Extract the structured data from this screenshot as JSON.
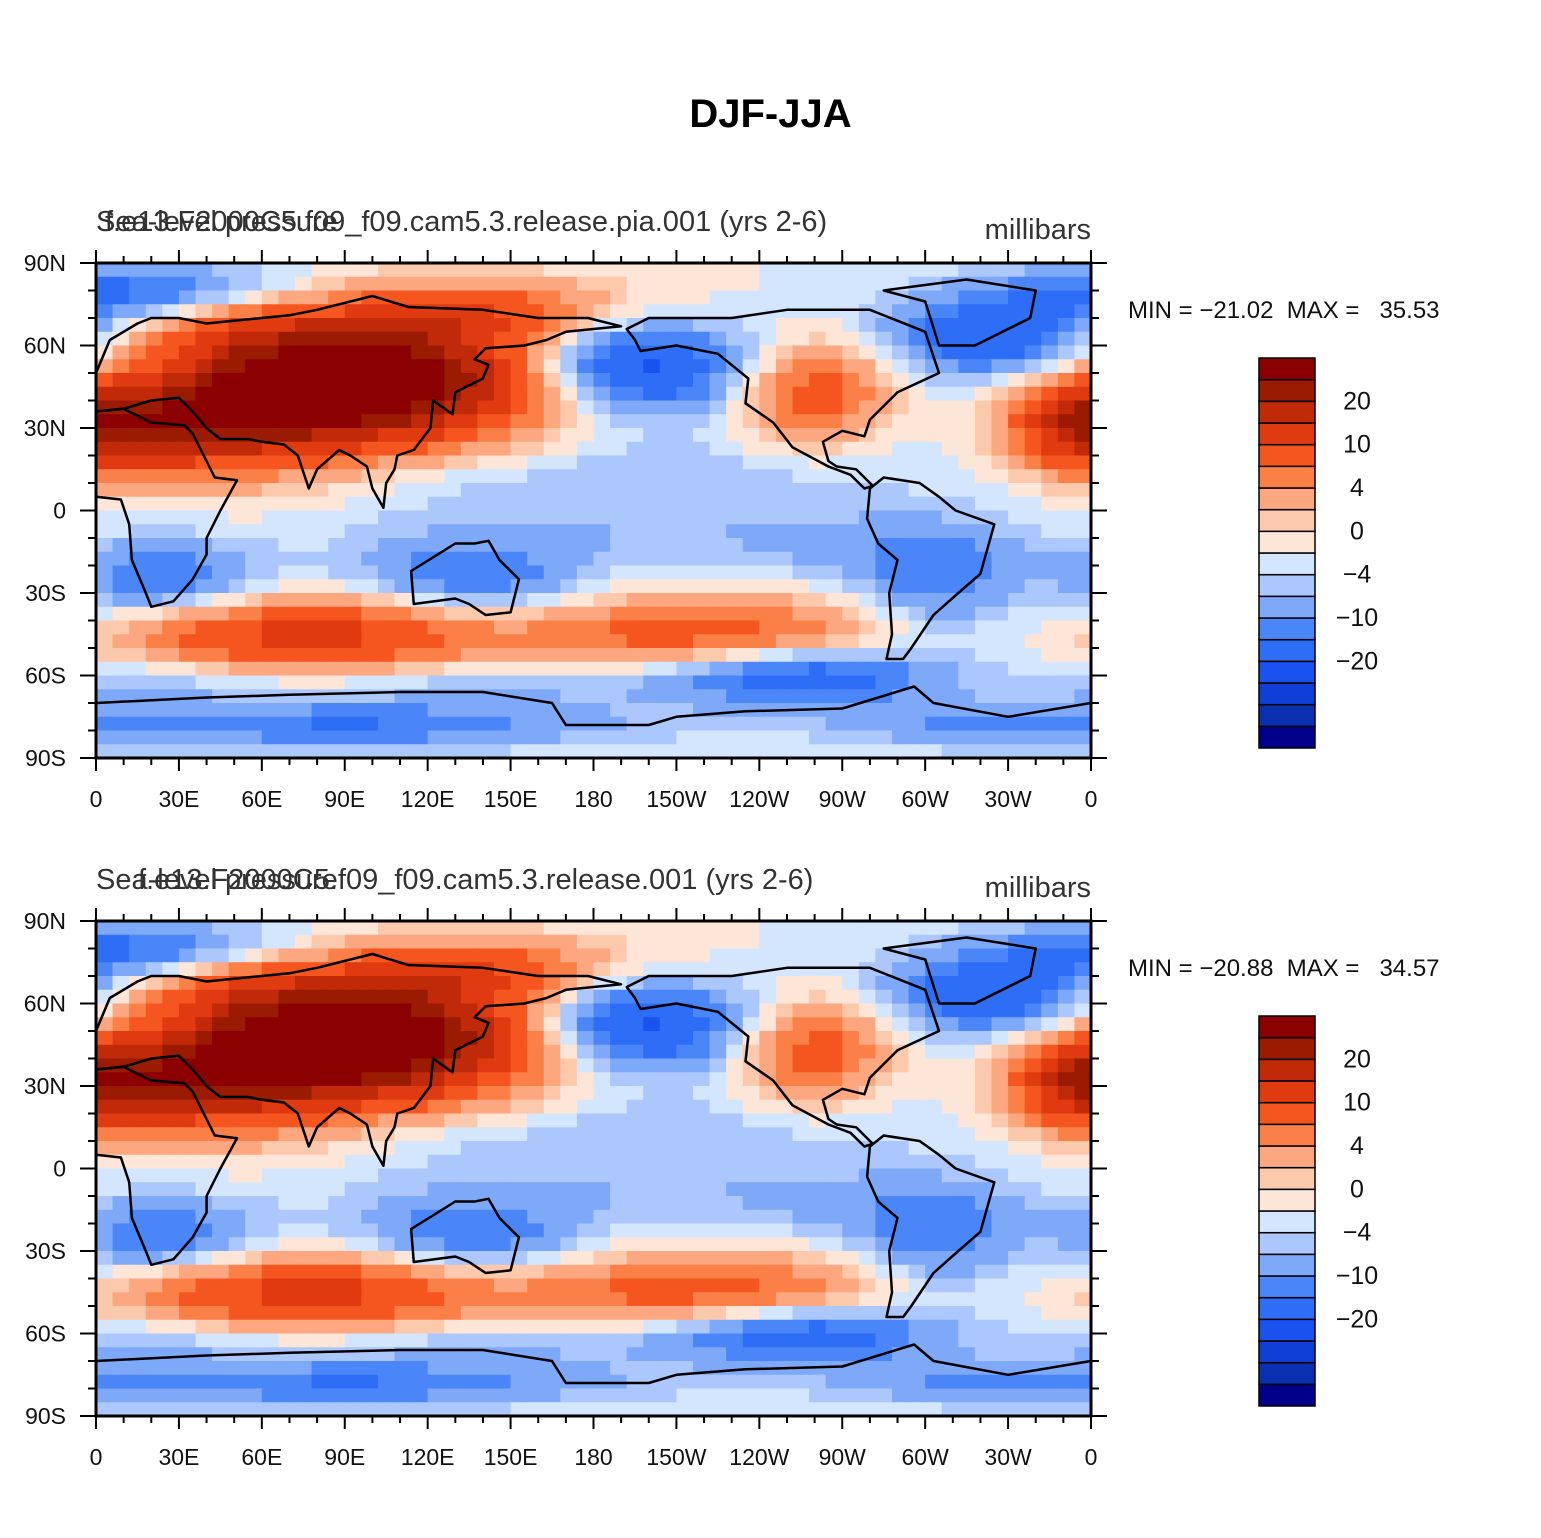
{
  "title": "DJF-JJA",
  "scale": {
    "colors": [
      "#00008b",
      "#0a2fb0",
      "#0f3fd6",
      "#1a52f0",
      "#2e6df5",
      "#4a86f7",
      "#7ea8f8",
      "#abc7fb",
      "#d3e6fd",
      "#fde6d8",
      "#fdc9ad",
      "#fca780",
      "#fb8048",
      "#f5561f",
      "#e03a10",
      "#c02a08",
      "#9b1a02",
      "#8b0000"
    ],
    "labels": [
      "20",
      "10",
      "4",
      "0",
      "−4",
      "−10",
      "−20"
    ]
  },
  "chart_data": [
    {
      "type": "heatmap",
      "title": "f.e13.F2000C5.f09_f09.cam5.3.release.pia.001 (yrs 2-6)",
      "left_label": "Sea-level pressure",
      "units": "millibars",
      "stats": "MIN = −21.02  MAX =   35.53",
      "x_ticks": [
        "0",
        "30E",
        "60E",
        "90E",
        "120E",
        "150E",
        "180",
        "150W",
        "120W",
        "90W",
        "60W",
        "30W",
        "0"
      ],
      "y_ticks": [
        "90N",
        "60N",
        "30N",
        "0",
        "30S",
        "60S",
        "90S"
      ],
      "xlim": [
        0,
        360
      ],
      "ylim": [
        -90,
        90
      ],
      "colorbar_levels": [
        "20",
        "10",
        "4",
        "0",
        "−4",
        "−10",
        "−20"
      ],
      "min": -21.02,
      "max": 35.53
    },
    {
      "type": "heatmap",
      "title": "f.e13.F2000C5.f09_f09.cam5.3.release.001 (yrs 2-6)",
      "left_label": "Sea-level pressure",
      "units": "millibars",
      "stats": "MIN = −20.88  MAX =   34.57",
      "x_ticks": [
        "0",
        "30E",
        "60E",
        "90E",
        "120E",
        "150E",
        "180",
        "150W",
        "120W",
        "90W",
        "60W",
        "30W",
        "0"
      ],
      "y_ticks": [
        "90N",
        "60N",
        "30N",
        "0",
        "30S",
        "60S",
        "90S"
      ],
      "xlim": [
        0,
        360
      ],
      "ylim": [
        -90,
        90
      ],
      "colorbar_levels": [
        "20",
        "10",
        "4",
        "0",
        "−4",
        "−10",
        "−20"
      ],
      "min": -20.88,
      "max": 34.57
    }
  ]
}
